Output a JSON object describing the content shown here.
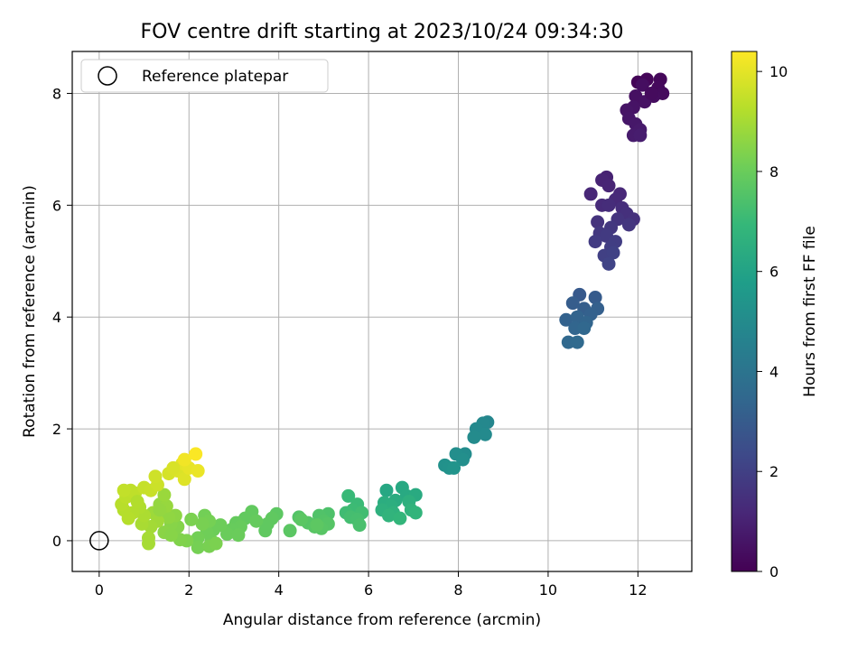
{
  "chart_data": {
    "type": "scatter",
    "title": "FOV centre drift starting at 2023/10/24 09:34:30",
    "xlabel": "Angular distance from reference (arcmin)",
    "ylabel": "Rotation from reference (arcmin)",
    "colorbar_label": "Hours from first FF file",
    "xlim": [
      -0.6,
      13.2
    ],
    "ylim": [
      -0.55,
      8.75
    ],
    "clim": [
      0,
      10.4
    ],
    "xticks": [
      0,
      2,
      4,
      6,
      8,
      10,
      12
    ],
    "yticks": [
      0,
      2,
      4,
      6,
      8
    ],
    "cticks": [
      0,
      2,
      4,
      6,
      8,
      10
    ],
    "grid": true,
    "legend": {
      "position": "top-left",
      "entries": [
        {
          "label": "Reference platepar",
          "marker": "open-circle"
        }
      ]
    },
    "reference_point": {
      "x": 0,
      "y": 0
    },
    "colormap": [
      "#440154",
      "#482777",
      "#3e4989",
      "#31688e",
      "#26828e",
      "#1f9e89",
      "#35b779",
      "#6ece58",
      "#b5de2b",
      "#fde725"
    ],
    "points": [
      {
        "x": 12.0,
        "y": 8.2,
        "t": 0.1
      },
      {
        "x": 12.2,
        "y": 8.25,
        "t": 0.15
      },
      {
        "x": 12.5,
        "y": 8.25,
        "t": 0.2
      },
      {
        "x": 12.45,
        "y": 8.1,
        "t": 0.25
      },
      {
        "x": 12.55,
        "y": 8.0,
        "t": 0.3
      },
      {
        "x": 12.35,
        "y": 7.95,
        "t": 0.35
      },
      {
        "x": 12.1,
        "y": 8.15,
        "t": 0.4
      },
      {
        "x": 11.95,
        "y": 7.95,
        "t": 0.45
      },
      {
        "x": 12.15,
        "y": 7.85,
        "t": 0.5
      },
      {
        "x": 11.9,
        "y": 7.75,
        "t": 0.55
      },
      {
        "x": 11.75,
        "y": 7.7,
        "t": 0.6
      },
      {
        "x": 11.8,
        "y": 7.55,
        "t": 0.65
      },
      {
        "x": 11.95,
        "y": 7.45,
        "t": 0.7
      },
      {
        "x": 12.05,
        "y": 7.35,
        "t": 0.75
      },
      {
        "x": 11.9,
        "y": 7.25,
        "t": 0.8
      },
      {
        "x": 12.05,
        "y": 7.25,
        "t": 0.85
      },
      {
        "x": 12.3,
        "y": 8.0,
        "t": 0.3
      },
      {
        "x": 11.3,
        "y": 6.5,
        "t": 1.0
      },
      {
        "x": 11.2,
        "y": 6.45,
        "t": 1.05
      },
      {
        "x": 11.35,
        "y": 6.35,
        "t": 1.1
      },
      {
        "x": 10.95,
        "y": 6.2,
        "t": 1.15
      },
      {
        "x": 11.6,
        "y": 6.2,
        "t": 1.2
      },
      {
        "x": 11.5,
        "y": 6.1,
        "t": 1.25
      },
      {
        "x": 11.2,
        "y": 6.0,
        "t": 1.3
      },
      {
        "x": 11.35,
        "y": 6.0,
        "t": 1.35
      },
      {
        "x": 11.65,
        "y": 5.95,
        "t": 1.4
      },
      {
        "x": 11.75,
        "y": 5.85,
        "t": 1.45
      },
      {
        "x": 11.9,
        "y": 5.75,
        "t": 1.5
      },
      {
        "x": 11.1,
        "y": 5.7,
        "t": 1.55
      },
      {
        "x": 11.55,
        "y": 5.75,
        "t": 1.6
      },
      {
        "x": 11.8,
        "y": 5.65,
        "t": 1.65
      },
      {
        "x": 11.4,
        "y": 5.6,
        "t": 1.7
      },
      {
        "x": 11.15,
        "y": 5.5,
        "t": 1.75
      },
      {
        "x": 11.3,
        "y": 5.45,
        "t": 1.8
      },
      {
        "x": 11.05,
        "y": 5.35,
        "t": 1.85
      },
      {
        "x": 11.5,
        "y": 5.35,
        "t": 1.9
      },
      {
        "x": 11.4,
        "y": 5.25,
        "t": 1.95
      },
      {
        "x": 11.25,
        "y": 5.1,
        "t": 2.0
      },
      {
        "x": 11.45,
        "y": 5.15,
        "t": 2.05
      },
      {
        "x": 11.35,
        "y": 4.95,
        "t": 2.1
      },
      {
        "x": 10.7,
        "y": 4.4,
        "t": 2.9
      },
      {
        "x": 11.05,
        "y": 4.35,
        "t": 3.0
      },
      {
        "x": 10.55,
        "y": 4.25,
        "t": 3.05
      },
      {
        "x": 10.8,
        "y": 4.15,
        "t": 3.1
      },
      {
        "x": 11.1,
        "y": 4.15,
        "t": 3.15
      },
      {
        "x": 10.95,
        "y": 4.05,
        "t": 3.2
      },
      {
        "x": 10.4,
        "y": 3.95,
        "t": 3.25
      },
      {
        "x": 10.65,
        "y": 4.0,
        "t": 3.3
      },
      {
        "x": 10.85,
        "y": 3.9,
        "t": 3.35
      },
      {
        "x": 10.6,
        "y": 3.8,
        "t": 3.4
      },
      {
        "x": 10.8,
        "y": 3.8,
        "t": 3.45
      },
      {
        "x": 10.45,
        "y": 3.55,
        "t": 3.5
      },
      {
        "x": 10.65,
        "y": 3.55,
        "t": 3.55
      },
      {
        "x": 8.65,
        "y": 2.12,
        "t": 4.8
      },
      {
        "x": 8.55,
        "y": 2.1,
        "t": 4.85
      },
      {
        "x": 8.4,
        "y": 2.0,
        "t": 4.9
      },
      {
        "x": 8.6,
        "y": 1.9,
        "t": 4.95
      },
      {
        "x": 8.35,
        "y": 1.85,
        "t": 5.0
      },
      {
        "x": 8.15,
        "y": 1.55,
        "t": 5.05
      },
      {
        "x": 7.95,
        "y": 1.55,
        "t": 5.1
      },
      {
        "x": 8.1,
        "y": 1.45,
        "t": 5.15
      },
      {
        "x": 7.7,
        "y": 1.35,
        "t": 5.25
      },
      {
        "x": 7.8,
        "y": 1.3,
        "t": 5.3
      },
      {
        "x": 7.9,
        "y": 1.3,
        "t": 5.35
      },
      {
        "x": 6.4,
        "y": 0.9,
        "t": 6.2
      },
      {
        "x": 6.75,
        "y": 0.95,
        "t": 6.25
      },
      {
        "x": 6.85,
        "y": 0.8,
        "t": 6.3
      },
      {
        "x": 7.05,
        "y": 0.82,
        "t": 6.35
      },
      {
        "x": 6.6,
        "y": 0.72,
        "t": 6.4
      },
      {
        "x": 6.35,
        "y": 0.68,
        "t": 6.45
      },
      {
        "x": 6.5,
        "y": 0.62,
        "t": 6.5
      },
      {
        "x": 6.9,
        "y": 0.7,
        "t": 6.55
      },
      {
        "x": 6.3,
        "y": 0.55,
        "t": 6.6
      },
      {
        "x": 6.55,
        "y": 0.5,
        "t": 6.65
      },
      {
        "x": 6.95,
        "y": 0.55,
        "t": 6.7
      },
      {
        "x": 6.45,
        "y": 0.45,
        "t": 6.75
      },
      {
        "x": 7.05,
        "y": 0.5,
        "t": 6.8
      },
      {
        "x": 6.7,
        "y": 0.4,
        "t": 6.85
      },
      {
        "x": 5.55,
        "y": 0.8,
        "t": 7.0
      },
      {
        "x": 5.75,
        "y": 0.65,
        "t": 7.05
      },
      {
        "x": 5.65,
        "y": 0.55,
        "t": 7.1
      },
      {
        "x": 5.5,
        "y": 0.5,
        "t": 7.15
      },
      {
        "x": 5.85,
        "y": 0.5,
        "t": 7.2
      },
      {
        "x": 5.6,
        "y": 0.42,
        "t": 7.25
      },
      {
        "x": 5.75,
        "y": 0.38,
        "t": 7.3
      },
      {
        "x": 5.8,
        "y": 0.28,
        "t": 7.35
      },
      {
        "x": 5.1,
        "y": 0.48,
        "t": 7.45
      },
      {
        "x": 4.9,
        "y": 0.45,
        "t": 7.5
      },
      {
        "x": 4.45,
        "y": 0.42,
        "t": 7.55
      },
      {
        "x": 5.0,
        "y": 0.35,
        "t": 7.55
      },
      {
        "x": 4.65,
        "y": 0.32,
        "t": 7.6
      },
      {
        "x": 5.1,
        "y": 0.3,
        "t": 7.6
      },
      {
        "x": 4.8,
        "y": 0.25,
        "t": 7.65
      },
      {
        "x": 4.95,
        "y": 0.22,
        "t": 7.65
      },
      {
        "x": 4.25,
        "y": 0.18,
        "t": 7.7
      },
      {
        "x": 4.5,
        "y": 0.38,
        "t": 7.7
      },
      {
        "x": 4.85,
        "y": 0.28,
        "t": 7.75
      },
      {
        "x": 3.95,
        "y": 0.48,
        "t": 7.75
      },
      {
        "x": 3.85,
        "y": 0.4,
        "t": 7.8
      },
      {
        "x": 3.75,
        "y": 0.3,
        "t": 7.8
      },
      {
        "x": 3.4,
        "y": 0.52,
        "t": 7.85
      },
      {
        "x": 3.25,
        "y": 0.4,
        "t": 7.85
      },
      {
        "x": 3.5,
        "y": 0.35,
        "t": 7.9
      },
      {
        "x": 3.05,
        "y": 0.32,
        "t": 7.9
      },
      {
        "x": 3.15,
        "y": 0.25,
        "t": 7.95
      },
      {
        "x": 2.95,
        "y": 0.2,
        "t": 7.95
      },
      {
        "x": 2.85,
        "y": 0.12,
        "t": 8.0
      },
      {
        "x": 3.1,
        "y": 0.1,
        "t": 8.0
      },
      {
        "x": 2.7,
        "y": 0.28,
        "t": 8.05
      },
      {
        "x": 2.55,
        "y": 0.2,
        "t": 8.05
      },
      {
        "x": 2.4,
        "y": 0.15,
        "t": 8.1
      },
      {
        "x": 2.5,
        "y": 0.0,
        "t": 8.1
      },
      {
        "x": 2.2,
        "y": 0.05,
        "t": 8.15
      },
      {
        "x": 2.35,
        "y": 0.45,
        "t": 8.15
      },
      {
        "x": 2.45,
        "y": 0.35,
        "t": 8.2
      },
      {
        "x": 2.2,
        "y": -0.12,
        "t": 8.2
      },
      {
        "x": 2.45,
        "y": -0.1,
        "t": 8.25
      },
      {
        "x": 2.3,
        "y": 0.3,
        "t": 8.25
      },
      {
        "x": 2.05,
        "y": 0.38,
        "t": 8.3
      },
      {
        "x": 2.6,
        "y": -0.05,
        "t": 8.3
      },
      {
        "x": 3.7,
        "y": 0.18,
        "t": 7.8
      },
      {
        "x": 1.95,
        "y": 0.0,
        "t": 8.35
      },
      {
        "x": 1.8,
        "y": 0.02,
        "t": 8.4
      },
      {
        "x": 1.75,
        "y": 0.25,
        "t": 8.45
      },
      {
        "x": 1.6,
        "y": 0.3,
        "t": 8.5
      },
      {
        "x": 1.45,
        "y": 0.15,
        "t": 8.55
      },
      {
        "x": 1.7,
        "y": 0.45,
        "t": 8.6
      },
      {
        "x": 1.55,
        "y": 0.42,
        "t": 8.65
      },
      {
        "x": 1.35,
        "y": 0.65,
        "t": 8.7
      },
      {
        "x": 1.5,
        "y": 0.62,
        "t": 8.75
      },
      {
        "x": 1.45,
        "y": 0.82,
        "t": 8.8
      },
      {
        "x": 1.2,
        "y": 0.5,
        "t": 8.85
      },
      {
        "x": 1.3,
        "y": 0.35,
        "t": 8.9
      },
      {
        "x": 1.15,
        "y": 0.25,
        "t": 8.95
      },
      {
        "x": 1.1,
        "y": 0.05,
        "t": 9.0
      },
      {
        "x": 1.1,
        "y": -0.05,
        "t": 9.0
      },
      {
        "x": 0.95,
        "y": 0.3,
        "t": 9.05
      },
      {
        "x": 1.0,
        "y": 0.45,
        "t": 9.1
      },
      {
        "x": 0.9,
        "y": 0.6,
        "t": 9.15
      },
      {
        "x": 0.75,
        "y": 0.5,
        "t": 9.2
      },
      {
        "x": 0.65,
        "y": 0.4,
        "t": 9.25
      },
      {
        "x": 0.55,
        "y": 0.55,
        "t": 9.25
      },
      {
        "x": 0.5,
        "y": 0.65,
        "t": 9.3
      },
      {
        "x": 0.6,
        "y": 0.78,
        "t": 9.35
      },
      {
        "x": 0.7,
        "y": 0.9,
        "t": 9.4
      },
      {
        "x": 0.8,
        "y": 0.85,
        "t": 9.4
      },
      {
        "x": 0.55,
        "y": 0.9,
        "t": 9.45
      },
      {
        "x": 1.0,
        "y": 0.95,
        "t": 9.5
      },
      {
        "x": 1.15,
        "y": 0.9,
        "t": 9.55
      },
      {
        "x": 1.3,
        "y": 1.0,
        "t": 9.6
      },
      {
        "x": 1.25,
        "y": 1.15,
        "t": 9.65
      },
      {
        "x": 1.55,
        "y": 1.2,
        "t": 9.75
      },
      {
        "x": 1.75,
        "y": 1.25,
        "t": 9.85
      },
      {
        "x": 1.9,
        "y": 1.1,
        "t": 9.9
      },
      {
        "x": 1.85,
        "y": 1.38,
        "t": 10.0
      },
      {
        "x": 2.0,
        "y": 1.3,
        "t": 10.05
      },
      {
        "x": 2.2,
        "y": 1.25,
        "t": 10.1
      },
      {
        "x": 1.9,
        "y": 1.45,
        "t": 10.2
      },
      {
        "x": 2.15,
        "y": 1.55,
        "t": 10.35
      },
      {
        "x": 1.65,
        "y": 1.3,
        "t": 9.8
      },
      {
        "x": 1.35,
        "y": 0.55,
        "t": 8.7
      },
      {
        "x": 1.6,
        "y": 0.1,
        "t": 8.5
      },
      {
        "x": 0.85,
        "y": 0.7,
        "t": 9.2
      }
    ]
  }
}
